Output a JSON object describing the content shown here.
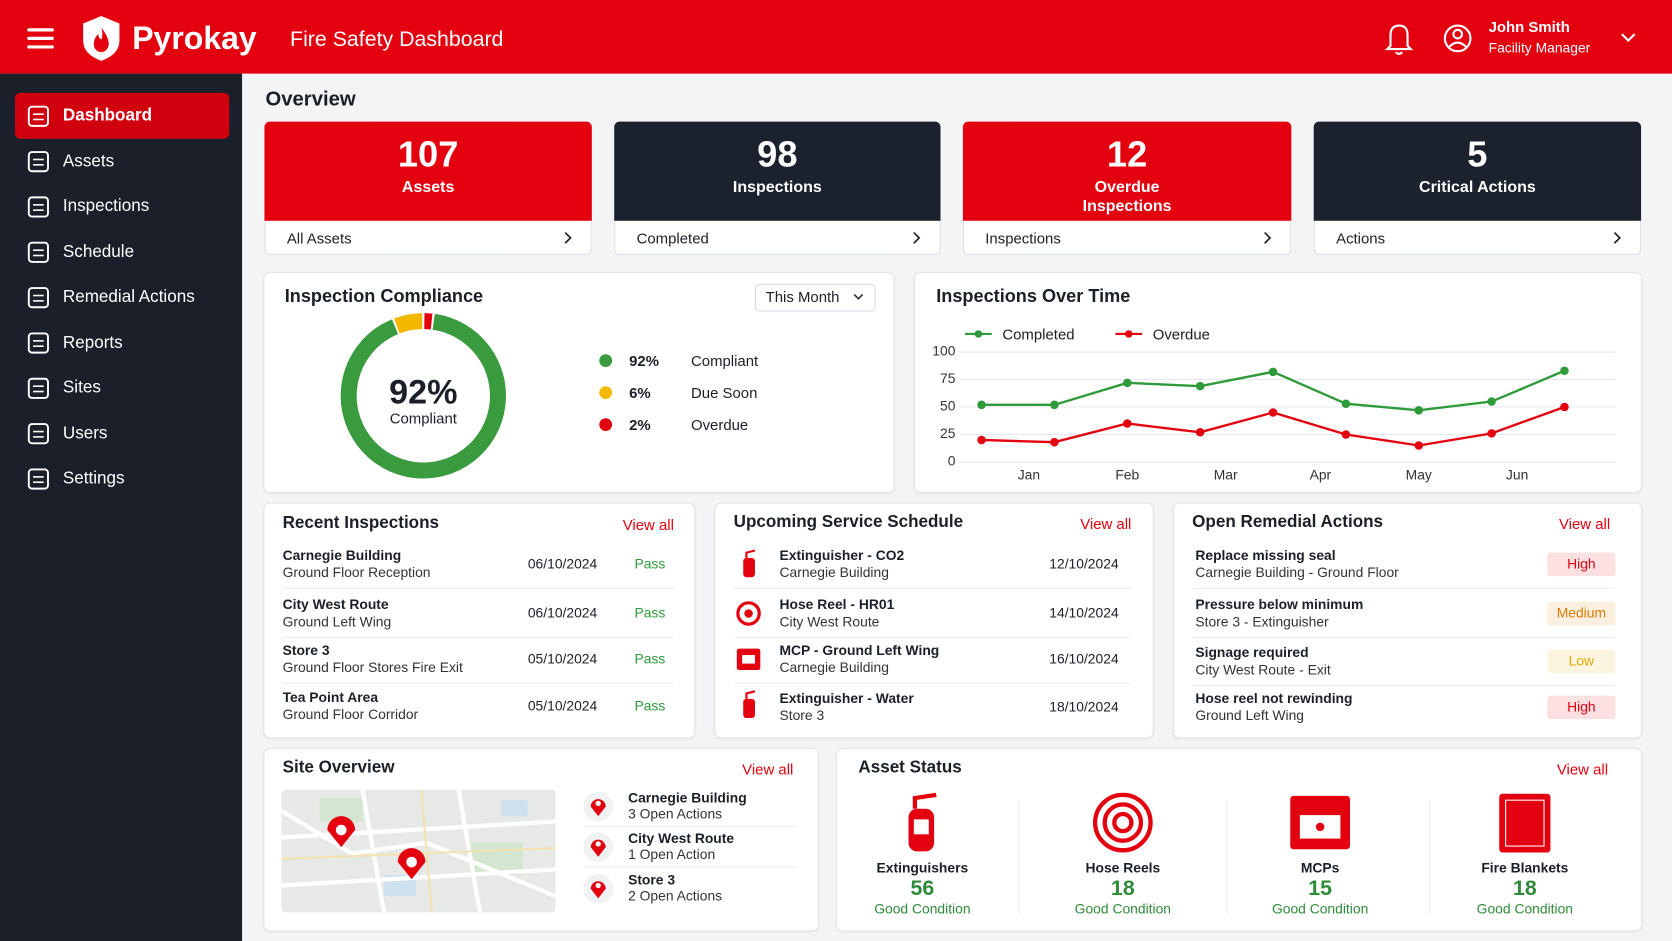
{
  "header": {
    "brand": "Pyrokay",
    "title": "Fire Safety Dashboard",
    "user": {
      "name": "John Smith",
      "role": "Facility Manager"
    }
  },
  "sidebar": [
    "Dashboard",
    "Assets",
    "Inspections",
    "Schedule",
    "Remedial Actions",
    "Reports",
    "Sites",
    "Users",
    "Settings"
  ],
  "overview": {
    "title": "Overview",
    "cards": [
      {
        "value": 107,
        "label": "Assets",
        "link": "All Assets",
        "color": "#e3000f"
      },
      {
        "value": 98,
        "label": "Inspections",
        "link": "Completed",
        "color": "#1c222d"
      },
      {
        "value": 12,
        "label": "Overdue Inspections",
        "link": "Inspections",
        "color": "#e3000f"
      },
      {
        "value": 5,
        "label": "Critical Actions",
        "link": "Actions",
        "color": "#1c222d"
      }
    ]
  },
  "chart_data": [
    {
      "type": "pie",
      "title": "Inspection Compliance",
      "dropdown": "This Month",
      "categories": [
        "Compliant",
        "Due Soon",
        "Overdue"
      ],
      "values": [
        92,
        6,
        2
      ],
      "value_labels": [
        "92%",
        "6%",
        "2%"
      ],
      "colors": [
        "#3a9a3e",
        "#f5b800",
        "#e3000f"
      ]
    },
    {
      "type": "line",
      "title": "Inspections Over Time",
      "x": [
        0,
        1,
        2,
        3,
        4,
        5,
        6,
        7,
        8
      ],
      "xlim": [
        -0.3,
        8.7
      ],
      "xticks": [
        {
          "value": 0.65,
          "label": "Jan"
        },
        {
          "value": 2,
          "label": "Feb"
        },
        {
          "value": 3.35,
          "label": "Mar"
        },
        {
          "value": 4.65,
          "label": "Apr"
        },
        {
          "value": 6,
          "label": "May"
        },
        {
          "value": 7.35,
          "label": "Jun"
        }
      ],
      "ylim": [
        0,
        100
      ],
      "yticks": [
        0,
        25,
        50,
        75,
        100
      ],
      "grid": true,
      "series": [
        {
          "name": "Completed",
          "color": "#2e9a3a",
          "values": [
            52,
            52,
            72,
            69,
            82,
            53,
            47,
            55,
            83
          ]
        },
        {
          "name": "Overdue",
          "color": "#e3000f",
          "values": [
            20,
            18,
            35,
            27,
            45,
            25,
            15,
            26,
            50
          ]
        }
      ]
    }
  ],
  "recent_inspections": {
    "title": "Recent Inspections",
    "view_all": "View all",
    "rows": [
      {
        "site": "Carnegie Building",
        "area": "Ground Floor Reception",
        "date": "06/10/2024",
        "status": "Pass"
      },
      {
        "site": "City West Route",
        "area": "Ground Left Wing",
        "date": "06/10/2024",
        "status": "Pass"
      },
      {
        "site": "Store 3",
        "area": "Ground Floor Stores Fire Exit",
        "date": "05/10/2024",
        "status": "Pass"
      },
      {
        "site": "Tea Point Area",
        "area": "Ground Floor Corridor",
        "date": "05/10/2024",
        "status": "Pass"
      }
    ]
  },
  "schedule": {
    "title": "Upcoming Service Schedule",
    "view_all": "View all",
    "rows": [
      {
        "asset": "Extinguisher - CO2",
        "site": "Carnegie Building",
        "date": "12/10/2024"
      },
      {
        "asset": "Hose Reel - HR01",
        "site": "City West Route",
        "date": "14/10/2024"
      },
      {
        "asset": "MCP - Ground Left Wing",
        "site": "Carnegie Building",
        "date": "16/10/2024"
      },
      {
        "asset": "Extinguisher - Water",
        "site": "Store 3",
        "date": "18/10/2024"
      }
    ]
  },
  "remedial": {
    "title": "Open Remedial Actions",
    "view_all": "View all",
    "rows": [
      {
        "action": "Replace missing seal",
        "location": "Carnegie Building - Ground Floor",
        "priority": "High",
        "color": "#e3000f"
      },
      {
        "action": "Pressure below minimum",
        "location": "Store 3 - Extinguisher",
        "priority": "Medium",
        "color": "#e07b00"
      },
      {
        "action": "Signage required",
        "location": "City West Route - Exit",
        "priority": "Low",
        "color": "#e0a800"
      },
      {
        "action": "Hose reel not rewinding",
        "location": "Ground Left Wing",
        "priority": "High",
        "color": "#e3000f"
      }
    ]
  },
  "sites": {
    "title": "Site Overview",
    "view_all": "View all",
    "rows": [
      {
        "name": "Carnegie Building",
        "actions": "3 Open Actions"
      },
      {
        "name": "City West Route",
        "actions": "1 Open Action"
      },
      {
        "name": "Store 3",
        "actions": "2 Open Actions"
      }
    ]
  },
  "asset_status": {
    "title": "Asset Status",
    "view_all": "View all",
    "items": [
      {
        "name": "Extinguishers",
        "count": 56,
        "status": "Good Condition"
      },
      {
        "name": "Hose Reels",
        "count": 18,
        "status": "Good Condition"
      },
      {
        "name": "MCPs",
        "count": 15,
        "status": "Good Condition"
      },
      {
        "name": "Fire Blankets",
        "count": 18,
        "status": "Good Condition"
      }
    ]
  }
}
